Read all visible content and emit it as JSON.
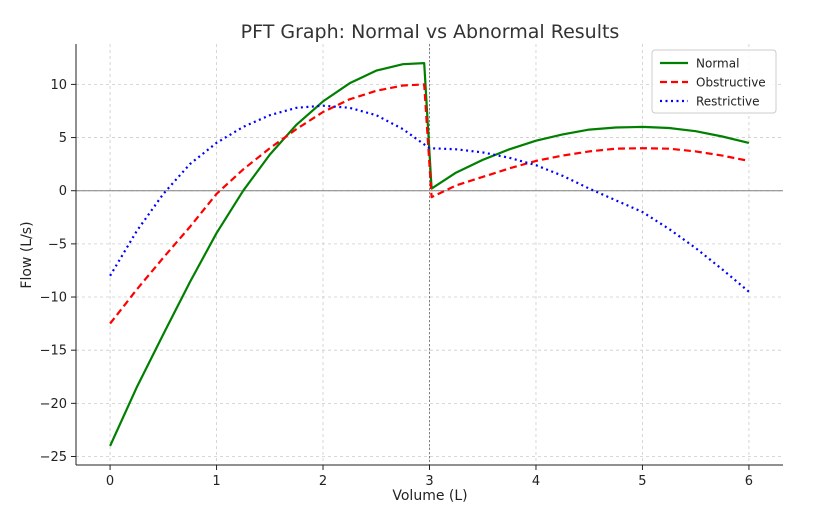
{
  "chart_data": {
    "type": "line",
    "title": "PFT Graph: Normal vs Abnormal Results",
    "xlabel": "Volume (L)",
    "ylabel": "Flow (L/s)",
    "xlim": [
      -0.32,
      6.32
    ],
    "ylim": [
      -25.8,
      13.8
    ],
    "x_ticks": [
      0,
      1,
      2,
      3,
      4,
      5,
      6
    ],
    "y_ticks": [
      -25,
      -20,
      -15,
      -10,
      -5,
      0,
      5,
      10
    ],
    "grid": true,
    "legend_position": "top-right",
    "reference_lines": [
      {
        "orientation": "horizontal",
        "value": 0,
        "color": "#808080"
      },
      {
        "orientation": "vertical",
        "value": 3,
        "color": "#808080"
      }
    ],
    "series": [
      {
        "name": "Normal",
        "color": "#008000",
        "dash": "solid",
        "segments": [
          {
            "x": [
              0,
              0.25,
              0.5,
              0.75,
              1.0,
              1.25,
              1.5,
              1.75,
              2.0,
              2.25,
              2.5,
              2.75,
              2.95
            ],
            "y": [
              -24.0,
              -18.5,
              -13.5,
              -8.6,
              -4.0,
              0.0,
              3.4,
              6.2,
              8.4,
              10.1,
              11.3,
              11.9,
              12.0
            ]
          },
          {
            "x": [
              2.95,
              3.02
            ],
            "y": [
              12.0,
              0.2
            ]
          },
          {
            "x": [
              3.02,
              3.25,
              3.5,
              3.75,
              4.0,
              4.25,
              4.5,
              4.75,
              5.0,
              5.25,
              5.5,
              5.75,
              6.0
            ],
            "y": [
              0.2,
              1.7,
              2.9,
              3.9,
              4.7,
              5.3,
              5.75,
              5.95,
              6.0,
              5.9,
              5.6,
              5.1,
              4.5
            ]
          }
        ]
      },
      {
        "name": "Obstructive",
        "color": "#ff0000",
        "dash": "dashed",
        "segments": [
          {
            "x": [
              0,
              0.25,
              0.5,
              0.75,
              1.0,
              1.25,
              1.5,
              1.75,
              2.0,
              2.25,
              2.5,
              2.75,
              2.95
            ],
            "y": [
              -12.5,
              -9.3,
              -6.3,
              -3.4,
              -0.3,
              2.0,
              4.0,
              5.8,
              7.4,
              8.6,
              9.4,
              9.9,
              10.0
            ]
          },
          {
            "x": [
              2.95,
              3.02
            ],
            "y": [
              10.0,
              -0.6
            ]
          },
          {
            "x": [
              3.02,
              3.25,
              3.5,
              3.75,
              4.0,
              4.25,
              4.5,
              4.75,
              5.0,
              5.25,
              5.5,
              5.75,
              6.0
            ],
            "y": [
              -0.6,
              0.5,
              1.3,
              2.1,
              2.8,
              3.3,
              3.7,
              3.95,
              4.0,
              3.95,
              3.7,
              3.3,
              2.8
            ]
          }
        ]
      },
      {
        "name": "Restrictive",
        "color": "#0000ff",
        "dash": "dotted",
        "segments": [
          {
            "x": [
              0,
              0.25,
              0.5,
              0.75,
              1.0,
              1.25,
              1.5,
              1.75,
              2.0,
              2.25,
              2.5,
              2.75,
              3.0
            ],
            "y": [
              -8.0,
              -3.8,
              -0.3,
              2.5,
              4.5,
              6.0,
              7.1,
              7.8,
              8.0,
              7.8,
              7.1,
              5.8,
              4.0
            ]
          },
          {
            "x": [
              3.0,
              3.25,
              3.5,
              3.75,
              4.0,
              4.25,
              4.5,
              4.75,
              5.0,
              5.25,
              5.5,
              5.75,
              6.0
            ],
            "y": [
              4.0,
              3.9,
              3.6,
              3.1,
              2.4,
              1.4,
              0.2,
              -0.9,
              -2.0,
              -3.6,
              -5.4,
              -7.4,
              -9.5
            ]
          }
        ]
      }
    ]
  }
}
